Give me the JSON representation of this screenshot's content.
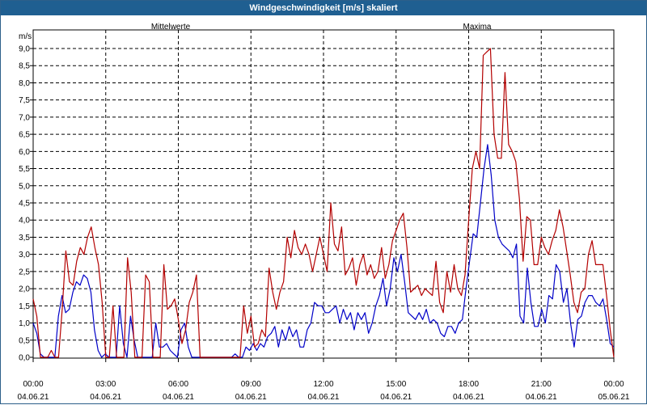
{
  "window": {
    "title": "Windgeschwindigkeit [m/s] skaliert"
  },
  "colors": {
    "mean": "#0000c8",
    "max": "#b40000",
    "grid": "#000000",
    "titlebar": "#1f5f91"
  },
  "chart_data": {
    "type": "line",
    "title": "Windgeschwindigkeit [m/s] skaliert",
    "ylabel": "m/s",
    "ylim": [
      0,
      9.0
    ],
    "yticks": [
      "0,0",
      "0,5",
      "1,0",
      "1,5",
      "2,0",
      "2,5",
      "3,0",
      "3,5",
      "4,0",
      "4,5",
      "5,0",
      "5,5",
      "6,0",
      "6,5",
      "7,0",
      "7,5",
      "8,0",
      "8,5",
      "9,0"
    ],
    "xlim": [
      0,
      24
    ],
    "xticks": [
      {
        "time": "00:00",
        "date": "04.06.21"
      },
      {
        "time": "03:00",
        "date": "04.06.21"
      },
      {
        "time": "06:00",
        "date": "04.06.21"
      },
      {
        "time": "09:00",
        "date": "04.06.21"
      },
      {
        "time": "12:00",
        "date": "04.06.21"
      },
      {
        "time": "15:00",
        "date": "04.06.21"
      },
      {
        "time": "18:00",
        "date": "04.06.21"
      },
      {
        "time": "21:00",
        "date": "04.06.21"
      },
      {
        "time": "00:00",
        "date": "05.06.21"
      }
    ],
    "grid": true,
    "legend_position": "top",
    "series": [
      {
        "name": "Mittelwerte",
        "color": "#0000c8",
        "values": [
          1.0,
          0.7,
          0.1,
          0.0,
          0.0,
          0.0,
          0.0,
          1.2,
          1.8,
          1.3,
          1.4,
          1.9,
          2.2,
          2.1,
          2.4,
          2.3,
          1.9,
          0.8,
          0.2,
          0.0,
          0.1,
          0.0,
          0.0,
          0.0,
          1.5,
          0.4,
          0.0,
          1.2,
          0.5,
          0.0,
          0.0,
          0.0,
          0.0,
          0.0,
          1.0,
          0.3,
          0.3,
          0.4,
          0.2,
          0.1,
          0.0,
          0.8,
          1.0,
          0.3,
          0.0,
          0.0,
          0.0,
          0.0,
          0.0,
          0.0,
          0.0,
          0.0,
          0.0,
          0.0,
          0.0,
          0.0,
          0.1,
          0.0,
          0.0,
          0.3,
          0.2,
          0.4,
          0.2,
          0.4,
          0.3,
          0.6,
          0.7,
          0.9,
          0.3,
          0.8,
          0.5,
          0.9,
          0.6,
          0.8,
          0.3,
          0.3,
          0.8,
          1.0,
          1.6,
          1.5,
          1.5,
          1.3,
          1.3,
          1.4,
          1.5,
          1.0,
          1.4,
          1.1,
          1.3,
          0.8,
          1.3,
          1.1,
          1.3,
          0.7,
          1.0,
          1.5,
          1.8,
          2.3,
          1.5,
          2.0,
          2.9,
          2.5,
          3.0,
          2.2,
          1.3,
          1.2,
          1.1,
          1.3,
          1.1,
          1.4,
          1.0,
          1.1,
          1.0,
          0.7,
          0.6,
          0.9,
          0.9,
          0.7,
          1.0,
          1.1,
          2.0,
          2.8,
          3.6,
          3.5,
          4.5,
          5.5,
          6.2,
          5.3,
          4.0,
          3.5,
          3.3,
          3.2,
          3.1,
          2.9,
          3.3,
          1.2,
          1.0,
          2.6,
          1.6,
          0.9,
          0.9,
          1.4,
          1.0,
          1.8,
          1.7,
          2.7,
          2.5,
          1.6,
          2.0,
          1.0,
          0.3,
          1.1,
          1.2,
          1.6,
          1.8,
          1.8,
          1.6,
          1.5,
          1.7,
          1.1,
          0.4,
          0.3
        ]
      },
      {
        "name": "Maxima",
        "color": "#b40000",
        "values": [
          1.7,
          1.2,
          0.0,
          0.0,
          0.0,
          0.2,
          0.0,
          0.0,
          1.4,
          3.1,
          2.2,
          2.1,
          2.8,
          3.2,
          3.0,
          3.5,
          3.8,
          3.2,
          2.7,
          1.6,
          0.0,
          0.0,
          1.5,
          0.0,
          0.0,
          0.0,
          2.9,
          1.9,
          0.0,
          0.0,
          0.0,
          2.4,
          2.2,
          0.0,
          0.0,
          0.0,
          2.7,
          1.4,
          1.5,
          1.7,
          1.1,
          0.4,
          0.8,
          1.6,
          1.9,
          2.4,
          0.0,
          0.0,
          0.0,
          0.0,
          0.0,
          0.0,
          0.0,
          0.0,
          0.0,
          0.0,
          0.0,
          0.0,
          1.5,
          0.7,
          1.2,
          0.3,
          0.4,
          0.8,
          0.6,
          2.6,
          1.9,
          1.4,
          1.9,
          2.2,
          3.5,
          2.9,
          3.7,
          3.2,
          3.0,
          3.3,
          3.0,
          2.5,
          3.0,
          3.5,
          3.0,
          2.5,
          4.5,
          3.3,
          3.1,
          3.8,
          2.4,
          2.6,
          2.9,
          2.1,
          2.7,
          3.0,
          2.4,
          2.7,
          2.3,
          2.5,
          3.2,
          2.3,
          2.7,
          3.4,
          3.7,
          4.0,
          4.2,
          3.2,
          1.9,
          2.0,
          2.1,
          1.8,
          2.0,
          1.9,
          1.8,
          2.8,
          1.6,
          1.3,
          2.5,
          1.9,
          2.7,
          2.0,
          1.8,
          2.4,
          4.0,
          5.5,
          6.0,
          5.5,
          8.8,
          8.9,
          9.0,
          6.5,
          5.8,
          5.8,
          8.3,
          6.2,
          6.0,
          5.7,
          4.6,
          2.8,
          4.1,
          4.0,
          2.7,
          2.7,
          3.5,
          3.2,
          3.0,
          3.4,
          3.7,
          4.3,
          3.8,
          3.1,
          2.4,
          1.6,
          1.3,
          1.9,
          2.0,
          3.0,
          3.4,
          2.7,
          2.7,
          2.7,
          1.8,
          0.8,
          0.0
        ]
      }
    ]
  }
}
